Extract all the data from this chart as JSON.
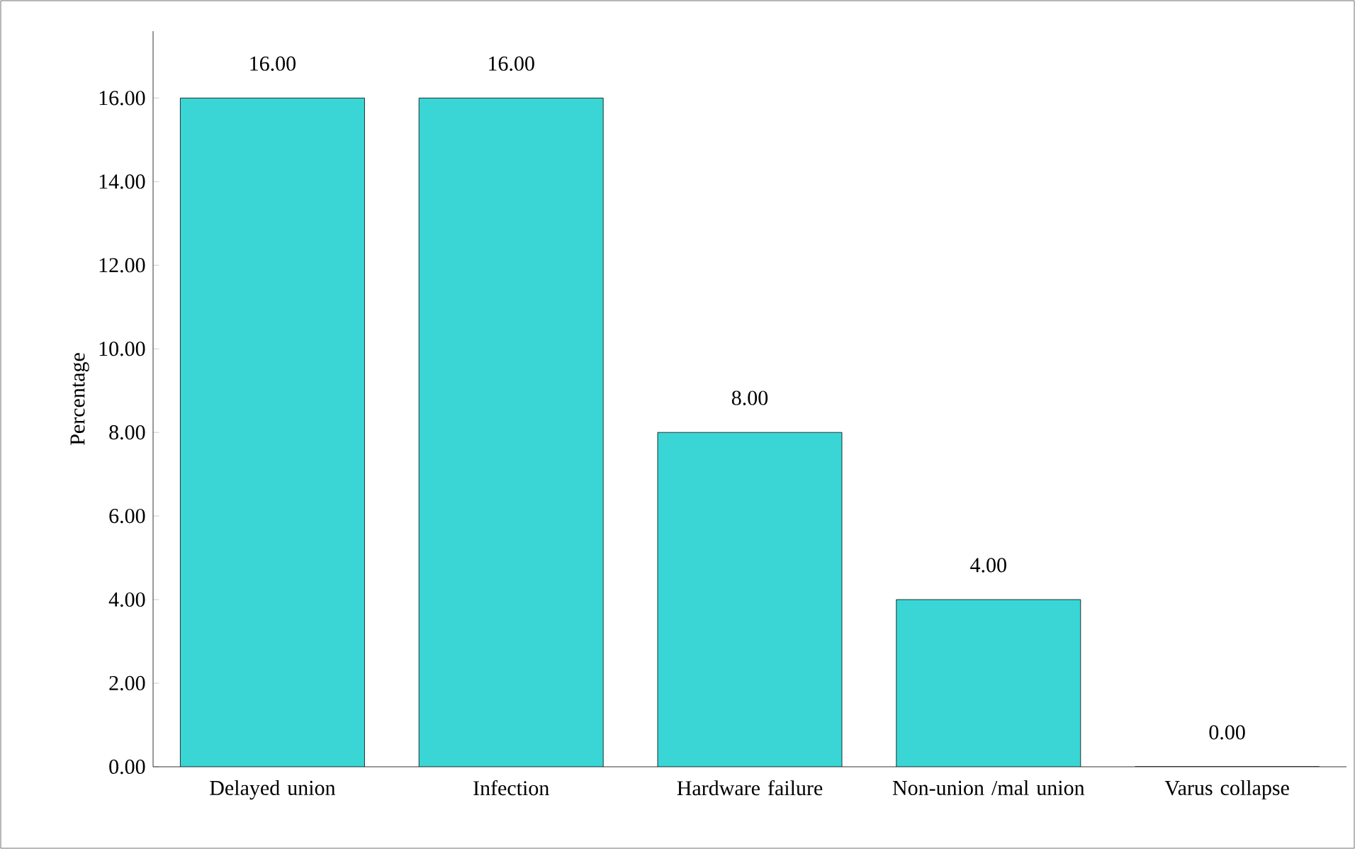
{
  "chart_data": {
    "type": "bar",
    "ylabel": "Percentage",
    "categories": [
      "Delayed union",
      "Infection",
      "Hardware failure",
      "Non-union /mal union",
      "Varus collapse"
    ],
    "values": [
      16,
      16,
      8,
      4,
      0
    ],
    "value_labels": [
      "16.00",
      "16.00",
      "8.00",
      "4.00",
      "0.00"
    ],
    "color": "#3ad6d6",
    "ylim": [
      0,
      17.6
    ],
    "yticks": [
      {
        "value": 0,
        "label": "0.00"
      },
      {
        "value": 2,
        "label": "2.00"
      },
      {
        "value": 4,
        "label": "4.00"
      },
      {
        "value": 6,
        "label": "6.00"
      },
      {
        "value": 8,
        "label": "8.00"
      },
      {
        "value": 10,
        "label": "10.00"
      },
      {
        "value": 12,
        "label": "12.00"
      },
      {
        "value": 14,
        "label": "14.00"
      },
      {
        "value": 16,
        "label": "16.00"
      }
    ],
    "grid": false
  }
}
